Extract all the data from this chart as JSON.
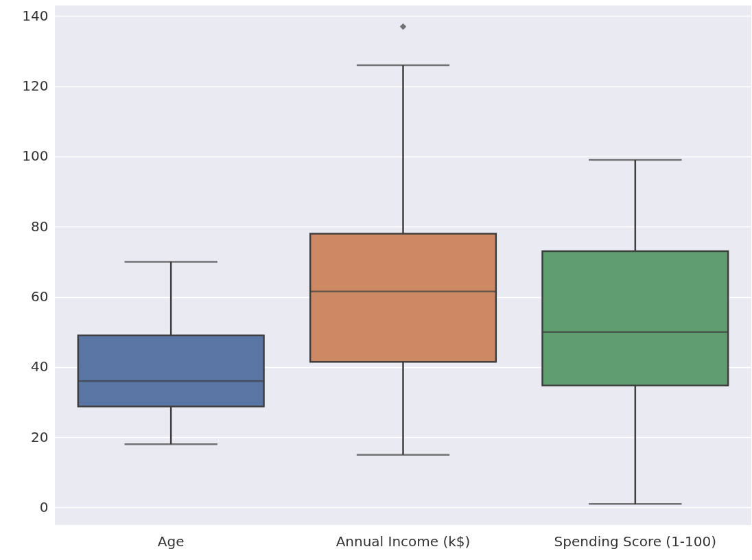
{
  "chart_data": {
    "type": "box",
    "categories": [
      "Age",
      "Annual Income (k$)",
      "Spending Score (1-100)"
    ],
    "colors": [
      "#5975a4",
      "#cc8963",
      "#5f9e6e"
    ],
    "boxes": [
      {
        "low": 18,
        "q1": 28.75,
        "median": 36,
        "q3": 49,
        "high": 70
      },
      {
        "low": 15,
        "q1": 41.5,
        "median": 61.5,
        "q3": 78,
        "high": 126,
        "outliers": [
          137
        ]
      },
      {
        "low": 1,
        "q1": 34.75,
        "median": 50,
        "q3": 73,
        "high": 99
      }
    ],
    "ylim": [
      -5,
      143
    ],
    "yticks": [
      0,
      20,
      40,
      60,
      80,
      100,
      120,
      140
    ],
    "grid": "y",
    "marker": "diamond"
  }
}
